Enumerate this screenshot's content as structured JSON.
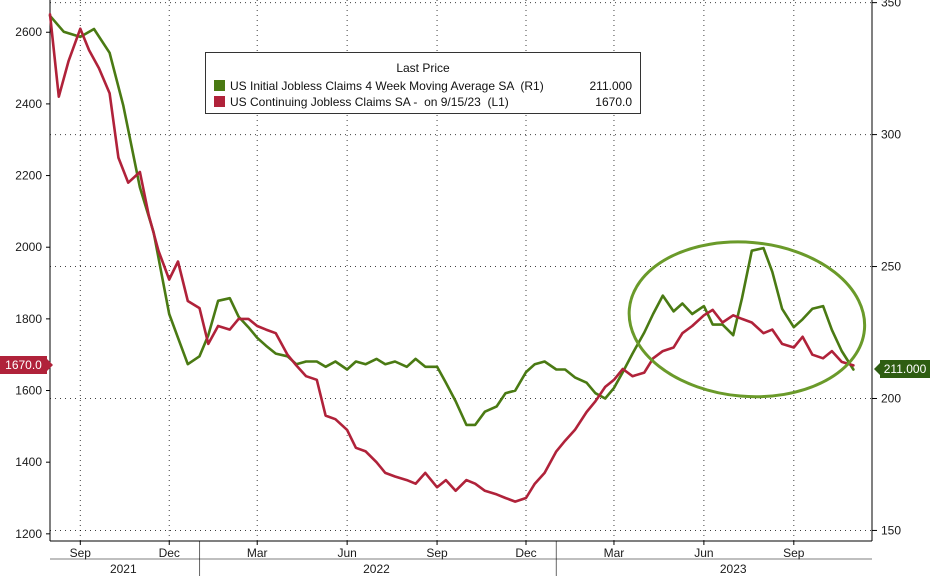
{
  "chart_data": {
    "type": "line",
    "legend": {
      "title": "Last Price",
      "placement": "top-left"
    },
    "series": [
      {
        "name": "US Initial Jobless Claims 4 Week Moving Average SA  (R1)",
        "last_value_label": "211.000",
        "axis": "right",
        "color": "#4a7a13",
        "points": [
          [
            "2021-08-01",
            345
          ],
          [
            "2021-08-15",
            339
          ],
          [
            "2021-09-01",
            337
          ],
          [
            "2021-09-15",
            340
          ],
          [
            "2021-10-01",
            331
          ],
          [
            "2021-10-15",
            311
          ],
          [
            "2021-11-01",
            280
          ],
          [
            "2021-11-15",
            263
          ],
          [
            "2021-12-01",
            232
          ],
          [
            "2021-12-10",
            223
          ],
          [
            "2021-12-20",
            213
          ],
          [
            "2022-01-01",
            216
          ],
          [
            "2022-01-10",
            224
          ],
          [
            "2022-01-20",
            237
          ],
          [
            "2022-02-01",
            238
          ],
          [
            "2022-02-10",
            231
          ],
          [
            "2022-02-20",
            227
          ],
          [
            "2022-03-01",
            223
          ],
          [
            "2022-03-10",
            220
          ],
          [
            "2022-03-20",
            217
          ],
          [
            "2022-04-01",
            216
          ],
          [
            "2022-04-10",
            213
          ],
          [
            "2022-04-20",
            214
          ],
          [
            "2022-05-01",
            214
          ],
          [
            "2022-05-10",
            212
          ],
          [
            "2022-05-20",
            214
          ],
          [
            "2022-06-01",
            211
          ],
          [
            "2022-06-10",
            214
          ],
          [
            "2022-06-20",
            213
          ],
          [
            "2022-07-01",
            215
          ],
          [
            "2022-07-10",
            213
          ],
          [
            "2022-07-20",
            214
          ],
          [
            "2022-08-01",
            212
          ],
          [
            "2022-08-10",
            215
          ],
          [
            "2022-08-20",
            212
          ],
          [
            "2022-09-01",
            212
          ],
          [
            "2022-09-10",
            206
          ],
          [
            "2022-09-20",
            199
          ],
          [
            "2022-10-01",
            190
          ],
          [
            "2022-10-10",
            190
          ],
          [
            "2022-10-20",
            195
          ],
          [
            "2022-11-01",
            197
          ],
          [
            "2022-11-10",
            202
          ],
          [
            "2022-11-20",
            203
          ],
          [
            "2022-12-01",
            210
          ],
          [
            "2022-12-10",
            213
          ],
          [
            "2022-12-20",
            214
          ],
          [
            "2023-01-01",
            211
          ],
          [
            "2023-01-10",
            211
          ],
          [
            "2023-01-20",
            208
          ],
          [
            "2023-02-01",
            206
          ],
          [
            "2023-02-10",
            202
          ],
          [
            "2023-02-20",
            200
          ],
          [
            "2023-03-01",
            204
          ],
          [
            "2023-03-10",
            210
          ],
          [
            "2023-03-20",
            217
          ],
          [
            "2023-04-01",
            225
          ],
          [
            "2023-04-10",
            232
          ],
          [
            "2023-04-20",
            239
          ],
          [
            "2023-05-01",
            233
          ],
          [
            "2023-05-10",
            236
          ],
          [
            "2023-05-20",
            232
          ],
          [
            "2023-06-01",
            235
          ],
          [
            "2023-06-10",
            228
          ],
          [
            "2023-06-20",
            228
          ],
          [
            "2023-07-01",
            224
          ],
          [
            "2023-07-10",
            238
          ],
          [
            "2023-07-20",
            256
          ],
          [
            "2023-08-01",
            257
          ],
          [
            "2023-08-10",
            248
          ],
          [
            "2023-08-20",
            234
          ],
          [
            "2023-09-01",
            227
          ],
          [
            "2023-09-10",
            230
          ],
          [
            "2023-09-20",
            234
          ],
          [
            "2023-10-01",
            235
          ],
          [
            "2023-10-10",
            226
          ],
          [
            "2023-10-20",
            218
          ],
          [
            "2023-11-01",
            211
          ]
        ]
      },
      {
        "name": "US Continuing Jobless Claims SA -  on 9/15/23  (L1)",
        "last_value_label": "1670.0",
        "axis": "left",
        "color": "#b0223a",
        "points": [
          [
            "2021-08-01",
            2650
          ],
          [
            "2021-08-10",
            2420
          ],
          [
            "2021-08-20",
            2520
          ],
          [
            "2021-09-01",
            2610
          ],
          [
            "2021-09-10",
            2550
          ],
          [
            "2021-09-20",
            2500
          ],
          [
            "2021-10-01",
            2430
          ],
          [
            "2021-10-10",
            2250
          ],
          [
            "2021-10-20",
            2180
          ],
          [
            "2021-11-01",
            2210
          ],
          [
            "2021-11-10",
            2090
          ],
          [
            "2021-11-20",
            1990
          ],
          [
            "2021-12-01",
            1910
          ],
          [
            "2021-12-10",
            1960
          ],
          [
            "2021-12-20",
            1850
          ],
          [
            "2022-01-01",
            1830
          ],
          [
            "2022-01-10",
            1730
          ],
          [
            "2022-01-20",
            1780
          ],
          [
            "2022-02-01",
            1770
          ],
          [
            "2022-02-10",
            1800
          ],
          [
            "2022-02-20",
            1800
          ],
          [
            "2022-03-01",
            1780
          ],
          [
            "2022-03-10",
            1770
          ],
          [
            "2022-03-20",
            1760
          ],
          [
            "2022-04-01",
            1700
          ],
          [
            "2022-04-10",
            1670
          ],
          [
            "2022-04-20",
            1640
          ],
          [
            "2022-05-01",
            1630
          ],
          [
            "2022-05-10",
            1530
          ],
          [
            "2022-05-20",
            1520
          ],
          [
            "2022-06-01",
            1490
          ],
          [
            "2022-06-10",
            1440
          ],
          [
            "2022-06-20",
            1430
          ],
          [
            "2022-07-01",
            1400
          ],
          [
            "2022-07-10",
            1370
          ],
          [
            "2022-07-20",
            1360
          ],
          [
            "2022-08-01",
            1350
          ],
          [
            "2022-08-10",
            1340
          ],
          [
            "2022-08-20",
            1370
          ],
          [
            "2022-09-01",
            1330
          ],
          [
            "2022-09-10",
            1350
          ],
          [
            "2022-09-20",
            1320
          ],
          [
            "2022-10-01",
            1350
          ],
          [
            "2022-10-10",
            1340
          ],
          [
            "2022-10-20",
            1320
          ],
          [
            "2022-11-01",
            1310
          ],
          [
            "2022-11-10",
            1300
          ],
          [
            "2022-11-20",
            1290
          ],
          [
            "2022-12-01",
            1300
          ],
          [
            "2022-12-10",
            1340
          ],
          [
            "2022-12-20",
            1370
          ],
          [
            "2023-01-01",
            1430
          ],
          [
            "2023-01-10",
            1460
          ],
          [
            "2023-01-20",
            1490
          ],
          [
            "2023-02-01",
            1540
          ],
          [
            "2023-02-10",
            1570
          ],
          [
            "2023-02-20",
            1610
          ],
          [
            "2023-03-01",
            1630
          ],
          [
            "2023-03-10",
            1660
          ],
          [
            "2023-03-20",
            1640
          ],
          [
            "2023-04-01",
            1650
          ],
          [
            "2023-04-10",
            1690
          ],
          [
            "2023-04-20",
            1710
          ],
          [
            "2023-05-01",
            1720
          ],
          [
            "2023-05-10",
            1760
          ],
          [
            "2023-05-20",
            1780
          ],
          [
            "2023-06-01",
            1810
          ],
          [
            "2023-06-10",
            1825
          ],
          [
            "2023-06-20",
            1790
          ],
          [
            "2023-07-01",
            1810
          ],
          [
            "2023-07-10",
            1800
          ],
          [
            "2023-07-20",
            1790
          ],
          [
            "2023-08-01",
            1760
          ],
          [
            "2023-08-10",
            1770
          ],
          [
            "2023-08-20",
            1730
          ],
          [
            "2023-09-01",
            1720
          ],
          [
            "2023-09-10",
            1750
          ],
          [
            "2023-09-20",
            1700
          ],
          [
            "2023-10-01",
            1690
          ],
          [
            "2023-10-10",
            1710
          ],
          [
            "2023-10-20",
            1680
          ],
          [
            "2023-11-01",
            1670
          ]
        ]
      }
    ],
    "y_left": {
      "ticks": [
        1200,
        1400,
        1600,
        1800,
        2000,
        2200,
        2400,
        2600
      ],
      "ylim": [
        1180,
        2690
      ],
      "last_value_label": "1670.0"
    },
    "y_right": {
      "ticks": [
        150,
        200,
        250,
        300,
        350
      ],
      "ylim": [
        146,
        351
      ],
      "last_value_label": "211.000"
    },
    "x_axis": {
      "month_ticks": [
        {
          "label": "Sep",
          "date": "2021-09-01"
        },
        {
          "label": "Dec",
          "date": "2021-12-01"
        },
        {
          "label": "Mar",
          "date": "2022-03-01"
        },
        {
          "label": "Jun",
          "date": "2022-06-01"
        },
        {
          "label": "Sep",
          "date": "2022-09-01"
        },
        {
          "label": "Dec",
          "date": "2022-12-01"
        },
        {
          "label": "Mar",
          "date": "2023-03-01"
        },
        {
          "label": "Jun",
          "date": "2023-06-01"
        },
        {
          "label": "Sep",
          "date": "2023-09-01"
        }
      ],
      "year_labels": [
        {
          "label": "2021",
          "date": "2021-10-15"
        },
        {
          "label": "2022",
          "date": "2022-07-01"
        },
        {
          "label": "2023",
          "date": "2023-07-01"
        }
      ],
      "year_boundaries": [
        "2022-01-01",
        "2023-01-01"
      ],
      "xlim": [
        "2021-08-01",
        "2023-11-20"
      ]
    },
    "annotation": {
      "type": "ellipse",
      "color": "#6a9a2a",
      "center_date": "2023-07-15",
      "center_value_right": 230
    },
    "grid": true
  }
}
